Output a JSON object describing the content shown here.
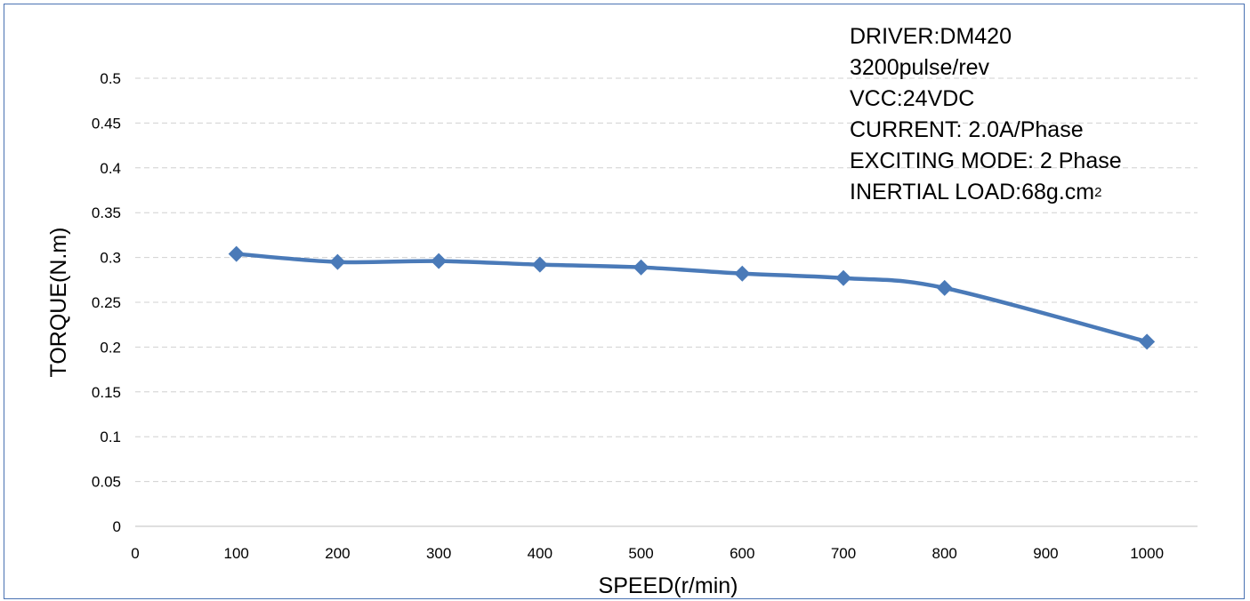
{
  "chart_data": {
    "type": "line",
    "xlabel": "SPEED(r/min)",
    "ylabel": "TORQUE(N.m)",
    "x_ticks": [
      "0",
      "100",
      "200",
      "300",
      "400",
      "500",
      "600",
      "700",
      "800",
      "900",
      "1000"
    ],
    "y_ticks": [
      "0",
      "0.05",
      "0.1",
      "0.15",
      "0.2",
      "0.25",
      "0.3",
      "0.35",
      "0.4",
      "0.45",
      "0.5"
    ],
    "ylim": [
      0,
      0.5
    ],
    "grid": true,
    "legend": "none",
    "series": [
      {
        "x": [
          100,
          200,
          300,
          400,
          500,
          600,
          700,
          800,
          1000
        ],
        "y": [
          0.304,
          0.295,
          0.296,
          0.292,
          0.289,
          0.282,
          0.277,
          0.266,
          0.206
        ],
        "color": "#4a7ab8",
        "marker": "diamond"
      }
    ],
    "annotations": {
      "driver": "DRIVER:DM420",
      "pulse": "3200pulse/rev",
      "vcc": "VCC:24VDC",
      "current": "CURRENT: 2.0A/Phase",
      "mode": "EXCITING MODE: 2 Phase",
      "inertial_load": "INERTIAL LOAD:68g.cm",
      "inertial_load_sup": "2"
    }
  }
}
